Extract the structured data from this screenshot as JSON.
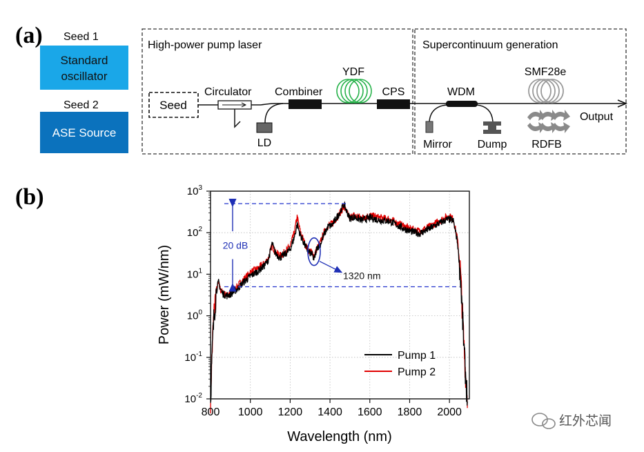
{
  "panel_a": {
    "letter": "(a)",
    "seed1_label": "Seed 1",
    "seed1_box": [
      "Standard",
      "oscillator"
    ],
    "seed2_label": "Seed 2",
    "seed2_box": "ASE Source",
    "section_pump": "High-power pump laser",
    "section_sc": "Supercontinuum generation",
    "seed": "Seed",
    "circulator": "Circulator",
    "ld": "LD",
    "combiner": "Combiner",
    "ydf": "YDF",
    "cps": "CPS",
    "wdm": "WDM",
    "mirror": "Mirror",
    "dump": "Dump",
    "smf": "SMF28e",
    "rdfb": "RDFB",
    "output": "Output",
    "colors": {
      "seed1": "#1aa7e8",
      "seed2": "#0b72bd",
      "ydf": "#27b24a",
      "smf": "#9a9a9a"
    }
  },
  "panel_b": {
    "letter": "(b)"
  },
  "chart_data": {
    "type": "line",
    "xlabel": "Wavelength (nm)",
    "ylabel": "Power (mW/nm)",
    "xlim": [
      800,
      2100
    ],
    "ylim_log10": [
      -2,
      3
    ],
    "yscale": "log",
    "xticks": [
      "800",
      "1000",
      "1200",
      "1400",
      "1600",
      "1800",
      "2000"
    ],
    "xtick_values": [
      800,
      1000,
      1200,
      1400,
      1600,
      1800,
      2000
    ],
    "yticks": [
      {
        "base": "10",
        "exp": "-2",
        "log": -2
      },
      {
        "base": "10",
        "exp": "-1",
        "log": -1
      },
      {
        "base": "10",
        "exp": "0",
        "log": 0
      },
      {
        "base": "10",
        "exp": "1",
        "log": 1
      },
      {
        "base": "10",
        "exp": "2",
        "log": 2
      },
      {
        "base": "10",
        "exp": "3",
        "log": 3
      }
    ],
    "grid": true,
    "legend_position": "bottom-right",
    "series": [
      {
        "name": "Pump 1",
        "color": "#000000",
        "points": [
          [
            800,
            0.01
          ],
          [
            805,
            0.05
          ],
          [
            812,
            0.3
          ],
          [
            820,
            1.5
          ],
          [
            830,
            4
          ],
          [
            840,
            6.5
          ],
          [
            850,
            4.5
          ],
          [
            860,
            3.5
          ],
          [
            880,
            3
          ],
          [
            900,
            3.3
          ],
          [
            930,
            4.2
          ],
          [
            960,
            6
          ],
          [
            1000,
            9
          ],
          [
            1040,
            12
          ],
          [
            1070,
            16
          ],
          [
            1090,
            22
          ],
          [
            1110,
            55
          ],
          [
            1125,
            32
          ],
          [
            1150,
            25
          ],
          [
            1180,
            32
          ],
          [
            1200,
            40
          ],
          [
            1220,
            75
          ],
          [
            1235,
            160
          ],
          [
            1250,
            90
          ],
          [
            1270,
            55
          ],
          [
            1290,
            35
          ],
          [
            1310,
            30
          ],
          [
            1320,
            22
          ],
          [
            1335,
            45
          ],
          [
            1350,
            50
          ],
          [
            1370,
            90
          ],
          [
            1390,
            140
          ],
          [
            1410,
            150
          ],
          [
            1440,
            260
          ],
          [
            1470,
            480
          ],
          [
            1480,
            360
          ],
          [
            1500,
            220
          ],
          [
            1520,
            240
          ],
          [
            1560,
            200
          ],
          [
            1600,
            230
          ],
          [
            1650,
            200
          ],
          [
            1700,
            190
          ],
          [
            1750,
            140
          ],
          [
            1800,
            110
          ],
          [
            1850,
            95
          ],
          [
            1900,
            125
          ],
          [
            1950,
            170
          ],
          [
            1980,
            200
          ],
          [
            2000,
            210
          ],
          [
            2020,
            190
          ],
          [
            2040,
            60
          ],
          [
            2055,
            10
          ],
          [
            2065,
            1
          ],
          [
            2075,
            0.1
          ],
          [
            2085,
            0.02
          ],
          [
            2090,
            0.01
          ]
        ]
      },
      {
        "name": "Pump 2",
        "color": "#e00000",
        "points": [
          [
            800,
            0.01
          ],
          [
            805,
            0.06
          ],
          [
            812,
            0.4
          ],
          [
            820,
            1.7
          ],
          [
            830,
            4.2
          ],
          [
            840,
            6
          ],
          [
            850,
            4.3
          ],
          [
            860,
            3.6
          ],
          [
            880,
            3.1
          ],
          [
            900,
            3.6
          ],
          [
            930,
            4.8
          ],
          [
            960,
            7
          ],
          [
            1000,
            11
          ],
          [
            1040,
            14
          ],
          [
            1070,
            18
          ],
          [
            1090,
            24
          ],
          [
            1110,
            50
          ],
          [
            1125,
            34
          ],
          [
            1150,
            28
          ],
          [
            1180,
            36
          ],
          [
            1200,
            48
          ],
          [
            1220,
            95
          ],
          [
            1235,
            240
          ],
          [
            1250,
            110
          ],
          [
            1270,
            60
          ],
          [
            1290,
            38
          ],
          [
            1310,
            33
          ],
          [
            1320,
            28
          ],
          [
            1335,
            42
          ],
          [
            1350,
            55
          ],
          [
            1370,
            100
          ],
          [
            1390,
            150
          ],
          [
            1410,
            165
          ],
          [
            1440,
            250
          ],
          [
            1470,
            420
          ],
          [
            1480,
            330
          ],
          [
            1500,
            230
          ],
          [
            1520,
            260
          ],
          [
            1560,
            230
          ],
          [
            1600,
            260
          ],
          [
            1650,
            230
          ],
          [
            1700,
            210
          ],
          [
            1750,
            160
          ],
          [
            1800,
            125
          ],
          [
            1850,
            110
          ],
          [
            1900,
            140
          ],
          [
            1950,
            190
          ],
          [
            1980,
            230
          ],
          [
            2000,
            250
          ],
          [
            2020,
            210
          ],
          [
            2040,
            70
          ],
          [
            2055,
            12
          ],
          [
            2065,
            1.2
          ],
          [
            2075,
            0.12
          ],
          [
            2085,
            0.02
          ],
          [
            2090,
            0.01
          ]
        ]
      }
    ],
    "annotations": {
      "db_label": "20 dB",
      "db_upper": 500,
      "db_lower": 5,
      "marker_label": "1320 nm",
      "marker_x": 1320,
      "marker_y": 35
    }
  },
  "watermark": "红外芯闻"
}
